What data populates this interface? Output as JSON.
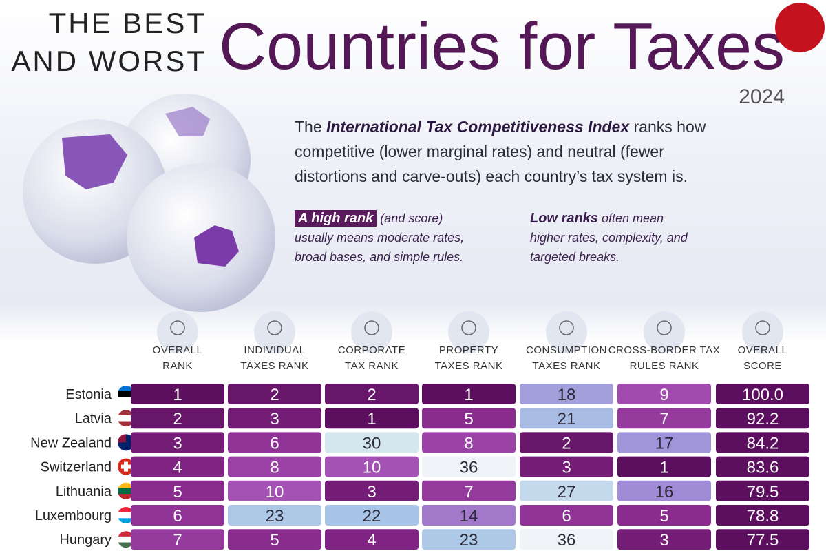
{
  "header": {
    "title_line1": "THE BEST",
    "title_line2": "AND WORST",
    "title_main": "Countries for Taxes",
    "year": "2024"
  },
  "intro": {
    "prefix": "The",
    "emphasis": "International Tax Competitiveness Index",
    "rest": "ranks how competitive (lower marginal rates) and neutral (fewer distortions and carve-outs) each country’s tax system is."
  },
  "notes": [
    {
      "highlight": "A high rank",
      "aside": "(and score)",
      "text": "usually means moderate rates, broad bases, and simple rules."
    },
    {
      "highlight": "Low ranks",
      "aside": "often mean",
      "text": "higher rates, complexity, and targeted breaks."
    }
  ],
  "table": {
    "columns": [
      [
        "OVERALL",
        "RANK"
      ],
      [
        "INDIVIDUAL",
        "TAXES RANK"
      ],
      [
        "CORPORATE",
        "TAX RANK"
      ],
      [
        "PROPERTY",
        "TAXES RANK"
      ],
      [
        "CONSUMPTION",
        "TAXES RANK"
      ],
      [
        "CROSS-BORDER TAX",
        "RULES RANK"
      ],
      [
        "OVERALL",
        "SCORE"
      ]
    ],
    "rows": [
      {
        "country": "Estonia",
        "ranks": [
          1,
          2,
          2,
          1,
          18,
          9
        ],
        "score": "100.0"
      },
      {
        "country": "Latvia",
        "ranks": [
          2,
          3,
          1,
          5,
          21,
          7
        ],
        "score": "92.2"
      },
      {
        "country": "New Zealand",
        "ranks": [
          3,
          6,
          30,
          8,
          2,
          17
        ],
        "score": "84.2"
      },
      {
        "country": "Switzerland",
        "ranks": [
          4,
          8,
          10,
          36,
          3,
          1
        ],
        "score": "83.6"
      },
      {
        "country": "Lithuania",
        "ranks": [
          5,
          10,
          3,
          7,
          27,
          16
        ],
        "score": "79.5"
      },
      {
        "country": "Luxembourg",
        "ranks": [
          6,
          23,
          22,
          14,
          6,
          5
        ],
        "score": "78.8"
      },
      {
        "country": "Hungary",
        "ranks": [
          7,
          5,
          4,
          23,
          36,
          3
        ],
        "score": "77.5"
      }
    ]
  }
}
